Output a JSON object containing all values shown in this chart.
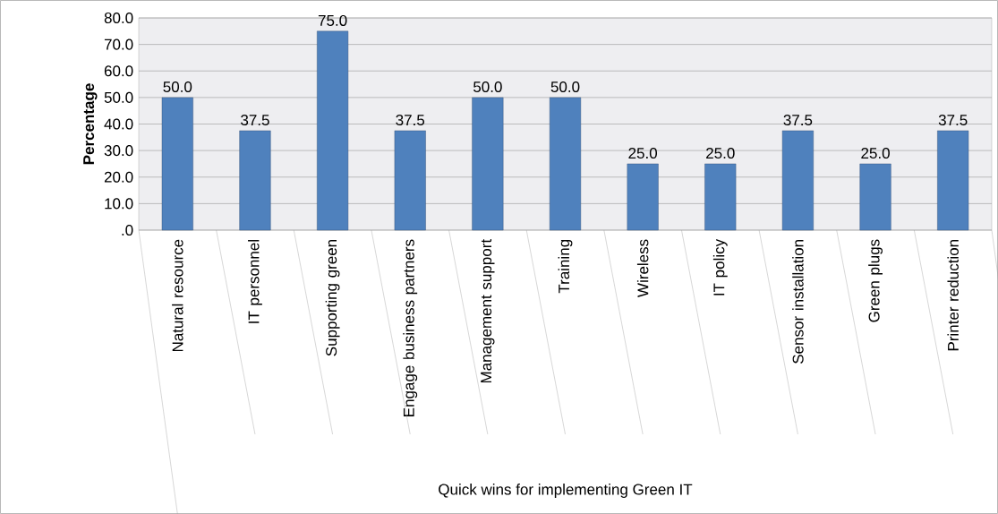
{
  "chart_data": {
    "type": "bar",
    "xlabel": "Quick wins for implementing Green IT",
    "ylabel": "Percentage",
    "categories": [
      "Natural resource",
      "IT personnel",
      "Supporting green",
      "Engage business partners",
      "Management support",
      "Training",
      "Wireless",
      "IT policy",
      "Sensor installation",
      "Green plugs",
      "Printer reduction"
    ],
    "values": [
      50,
      37.5,
      75,
      37.5,
      50,
      50,
      25,
      25,
      37.5,
      25,
      37.5
    ],
    "value_labels": [
      "50.0",
      "37.5",
      "75.0",
      "37.5",
      "50.0",
      "50.0",
      "25.0",
      "25.0",
      "37.5",
      "25.0",
      "37.5"
    ],
    "color": "#4f81bd",
    "ylim": [
      0,
      80
    ],
    "yticks": [
      {
        "value": 0,
        "label": ".0"
      },
      {
        "value": 10,
        "label": "10.0"
      },
      {
        "value": 20,
        "label": "20.0"
      },
      {
        "value": 30,
        "label": "30.0"
      },
      {
        "value": 40,
        "label": "40.0"
      },
      {
        "value": 50,
        "label": "50.0"
      },
      {
        "value": 60,
        "label": "60.0"
      },
      {
        "value": 70,
        "label": "70.0"
      },
      {
        "value": 80,
        "label": "80.0"
      }
    ],
    "grid": "y"
  }
}
